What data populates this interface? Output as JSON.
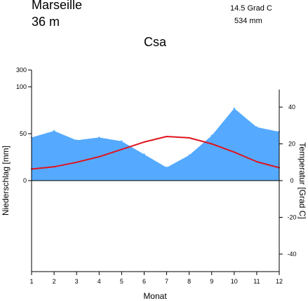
{
  "header": {
    "station": "Marseille",
    "elevation": "36 m",
    "mean_temperature": "14.5 Grad C",
    "annual_precipitation": "534 mm",
    "climate_class": "Csa"
  },
  "colors": {
    "precipitation_fill": "#55aaff",
    "temperature_line": "#e0141e"
  },
  "chart_data": {
    "type": "area",
    "x": [
      1,
      2,
      3,
      4,
      5,
      6,
      7,
      8,
      9,
      10,
      11,
      12
    ],
    "x_ticks": [
      "1",
      "2",
      "3",
      "4",
      "5",
      "6",
      "7",
      "8",
      "9",
      "10",
      "11",
      "12"
    ],
    "xlabel": "Monat",
    "ylabel_left": "Niederschlag [mm]",
    "ylabel_right": "Temperatur [Grad C]",
    "left_ticks": [
      "0",
      "50",
      "100",
      "300"
    ],
    "right_ticks": [
      "-40",
      "-20",
      "0",
      "20",
      "40"
    ],
    "right_ylim": [
      -50,
      50
    ],
    "series": [
      {
        "key": "precipitation",
        "axis": "left",
        "kind": "area",
        "values": [
          46,
          53,
          43,
          46,
          42,
          28,
          14,
          27,
          48,
          77,
          57,
          52
        ]
      },
      {
        "key": "temperature",
        "axis": "right",
        "kind": "line",
        "values": [
          6.3,
          7.5,
          10.0,
          13.0,
          17.0,
          21.0,
          24.0,
          23.3,
          20.0,
          15.5,
          10.3,
          7.0
        ]
      }
    ]
  }
}
